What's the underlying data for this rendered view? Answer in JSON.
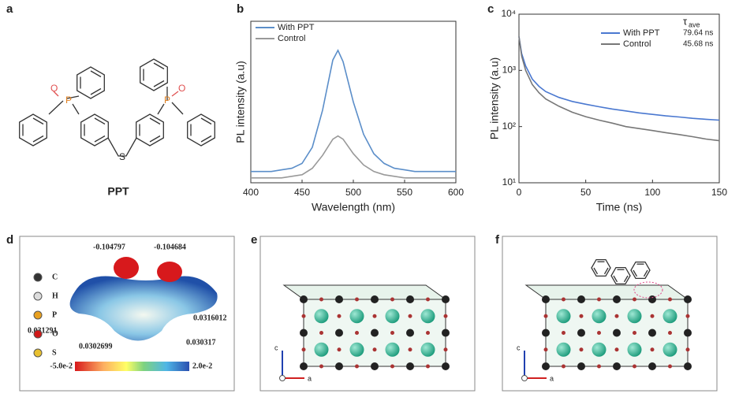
{
  "panel_labels": [
    "a",
    "b",
    "c",
    "d",
    "e",
    "f"
  ],
  "molecule": {
    "name": "PPT",
    "atoms": [
      "O",
      "P",
      "S",
      "P",
      "O"
    ]
  },
  "esp": {
    "legend": [
      "C",
      "H",
      "P",
      "O",
      "S"
    ],
    "charges": [
      "-0.104797",
      "-0.104684",
      "0.0316012",
      "0.031291",
      "0.0302699",
      "0.030317"
    ],
    "scale": [
      "-5.0e-2",
      "2.0e-2"
    ]
  },
  "crystal_axes": {
    "e": [
      "c",
      "a"
    ],
    "f": [
      "c",
      "a"
    ]
  },
  "chart_data": [
    {
      "type": "line",
      "x_label": "Wavelength (nm)",
      "y_label": "PL intensity (a.u)",
      "xlim": [
        400,
        600
      ],
      "xticks": [
        400,
        450,
        500,
        550,
        600
      ],
      "ylim": [
        0,
        1
      ],
      "legend": "upper left",
      "x": [
        400,
        410,
        420,
        430,
        440,
        450,
        460,
        470,
        480,
        485,
        490,
        500,
        510,
        520,
        530,
        540,
        550,
        560,
        580,
        600
      ],
      "series": [
        {
          "name": "With PPT",
          "color": "#5b8ec9",
          "values": [
            0.07,
            0.07,
            0.07,
            0.08,
            0.09,
            0.12,
            0.22,
            0.45,
            0.76,
            0.82,
            0.75,
            0.5,
            0.3,
            0.18,
            0.12,
            0.09,
            0.08,
            0.07,
            0.07,
            0.07
          ]
        },
        {
          "name": "Control",
          "color": "#999999",
          "values": [
            0.03,
            0.03,
            0.03,
            0.03,
            0.04,
            0.05,
            0.09,
            0.17,
            0.27,
            0.29,
            0.27,
            0.18,
            0.11,
            0.07,
            0.05,
            0.04,
            0.03,
            0.03,
            0.03,
            0.03
          ]
        }
      ]
    },
    {
      "type": "line",
      "x_label": "Time (ns)",
      "y_label": "PL intensity (a.u)",
      "xlim": [
        0,
        150
      ],
      "xticks": [
        0,
        50,
        100,
        150
      ],
      "ylim": [
        10,
        10000
      ],
      "log_y": true,
      "yticks": [
        {
          "value": 10,
          "label": "10¹"
        },
        {
          "value": 100,
          "label": "10²"
        },
        {
          "value": 1000,
          "label": "10³"
        },
        {
          "value": 10000,
          "label": "10⁴"
        }
      ],
      "legend": "upper right",
      "lifetime_symbol": "τ",
      "lifetime_subscript": "ave",
      "x": [
        0,
        2,
        5,
        10,
        15,
        20,
        30,
        40,
        50,
        60,
        70,
        80,
        90,
        100,
        110,
        120,
        130,
        140,
        150
      ],
      "series": [
        {
          "name": "With PPT",
          "color": "#4a78d0",
          "lifetime": "79.64 ns",
          "values": [
            4000,
            2000,
            1200,
            700,
            520,
            420,
            330,
            280,
            250,
            225,
            205,
            190,
            175,
            165,
            155,
            148,
            140,
            135,
            130
          ]
        },
        {
          "name": "Control",
          "color": "#777777",
          "lifetime": "45.68 ns",
          "values": [
            4000,
            1800,
            1000,
            560,
            400,
            310,
            230,
            180,
            150,
            130,
            115,
            100,
            92,
            85,
            78,
            72,
            66,
            60,
            56
          ]
        }
      ]
    }
  ]
}
